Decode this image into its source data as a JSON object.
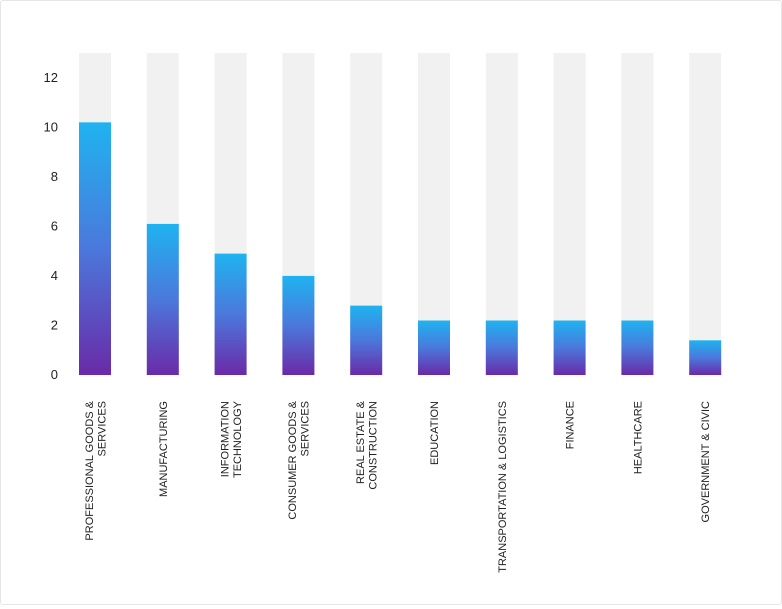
{
  "chart_data": {
    "type": "bar",
    "title": "",
    "xlabel": "",
    "ylabel": "",
    "categories": [
      [
        "PROFESSIONAL GOODS &",
        "SERVICES"
      ],
      [
        "MANUFACTURING"
      ],
      [
        "INFORMATION",
        "TECHNOLOGY"
      ],
      [
        "CONSUMER GOODS &",
        "SERVICES"
      ],
      [
        "REAL ESTATE &",
        "CONSTRUCTION"
      ],
      [
        "EDUCATION"
      ],
      [
        "TRANSPORTATION & LOGISTICS"
      ],
      [
        "FINANCE"
      ],
      [
        "HEALTHCARE"
      ],
      [
        "GOVERNMENT & CIVIC"
      ]
    ],
    "values": [
      10.2,
      6.1,
      4.9,
      4.0,
      2.8,
      2.2,
      2.2,
      2.2,
      2.2,
      1.4
    ],
    "ylim": [
      0,
      13
    ],
    "yticks": [
      "0",
      "2",
      "4",
      "6",
      "8",
      "10",
      "12"
    ],
    "grid": false,
    "colors": {
      "bar_top": "#1fb3f0",
      "bar_mid": "#4b78dc",
      "bar_bottom": "#6a2aa8",
      "track": "#f1f1f1"
    }
  }
}
